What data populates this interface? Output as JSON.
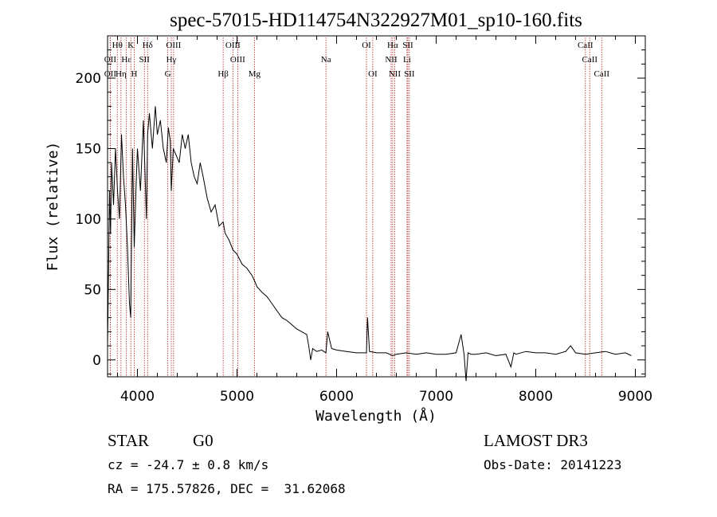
{
  "colors": {
    "foreground": "#000000",
    "line_marker": "#b22222",
    "background": "#ffffff"
  },
  "chart_data": {
    "type": "line",
    "title": "spec-57015-HD114754N322927M01_sp10-160.fits",
    "xlabel": "Wavelength (Å)",
    "ylabel": "Flux (relative)",
    "xlim": [
      3700,
      9100
    ],
    "ylim": [
      -12,
      230
    ],
    "x_ticks": [
      4000,
      5000,
      6000,
      7000,
      8000,
      9000
    ],
    "y_ticks": [
      0,
      50,
      100,
      150,
      200
    ],
    "grid": false,
    "series": [
      {
        "name": "spectrum",
        "x": [
          3700,
          3710,
          3720,
          3730,
          3740,
          3760,
          3780,
          3800,
          3820,
          3840,
          3860,
          3880,
          3900,
          3920,
          3933,
          3950,
          3968,
          3985,
          4000,
          4030,
          4060,
          4090,
          4102,
          4120,
          4150,
          4180,
          4200,
          4230,
          4260,
          4290,
          4310,
          4330,
          4340,
          4360,
          4390,
          4420,
          4450,
          4480,
          4510,
          4540,
          4570,
          4600,
          4630,
          4660,
          4700,
          4740,
          4780,
          4820,
          4861,
          4880,
          4920,
          4960,
          5000,
          5050,
          5100,
          5150,
          5183,
          5200,
          5250,
          5300,
          5350,
          5400,
          5450,
          5500,
          5550,
          5600,
          5650,
          5700,
          5720,
          5740,
          5760,
          5800,
          5850,
          5893,
          5910,
          5950,
          6000,
          6100,
          6200,
          6300,
          6310,
          6330,
          6400,
          6500,
          6563,
          6600,
          6700,
          6800,
          6900,
          7000,
          7100,
          7200,
          7250,
          7280,
          7300,
          7320,
          7350,
          7400,
          7500,
          7600,
          7700,
          7750,
          7780,
          7800,
          7900,
          8000,
          8100,
          8200,
          8300,
          8350,
          8400,
          8500,
          8600,
          8700,
          8800,
          8900,
          8960
        ],
        "y": [
          10,
          65,
          120,
          90,
          140,
          110,
          150,
          120,
          100,
          160,
          130,
          110,
          80,
          40,
          30,
          150,
          80,
          120,
          150,
          120,
          170,
          100,
          160,
          175,
          150,
          180,
          160,
          170,
          150,
          140,
          165,
          155,
          120,
          150,
          145,
          140,
          160,
          150,
          160,
          140,
          130,
          125,
          140,
          130,
          115,
          105,
          110,
          95,
          98,
          90,
          85,
          78,
          75,
          68,
          65,
          60,
          55,
          52,
          48,
          45,
          40,
          35,
          30,
          28,
          25,
          22,
          20,
          18,
          10,
          0,
          8,
          6,
          7,
          5,
          20,
          8,
          7,
          6,
          5,
          5,
          30,
          6,
          5,
          5,
          3,
          4,
          5,
          4,
          5,
          4,
          4,
          5,
          18,
          4,
          -15,
          5,
          4,
          4,
          5,
          3,
          4,
          -5,
          5,
          4,
          6,
          5,
          5,
          4,
          6,
          10,
          5,
          4,
          5,
          6,
          4,
          5,
          3
        ]
      }
    ],
    "line_markers": [
      {
        "label": "Hθ",
        "x": 3798,
        "row": 1
      },
      {
        "label": "K",
        "x": 3934,
        "row": 1
      },
      {
        "label": "Hδ",
        "x": 4102,
        "row": 1
      },
      {
        "label": "OIII",
        "x": 4363,
        "row": 1
      },
      {
        "label": "OIII",
        "x": 4959,
        "row": 1
      },
      {
        "label": "OI",
        "x": 6300,
        "row": 1
      },
      {
        "label": "Hα",
        "x": 6563,
        "row": 1
      },
      {
        "label": "SII",
        "x": 6716,
        "row": 1
      },
      {
        "label": "CaII",
        "x": 8498,
        "row": 1
      },
      {
        "label": "OII",
        "x": 3727,
        "row": 2
      },
      {
        "label": "Hε",
        "x": 3889,
        "row": 2
      },
      {
        "label": "SII",
        "x": 4070,
        "row": 2
      },
      {
        "label": "Hγ",
        "x": 4340,
        "row": 2
      },
      {
        "label": "OIII",
        "x": 5007,
        "row": 2
      },
      {
        "label": "Na",
        "x": 5893,
        "row": 2
      },
      {
        "label": "NII",
        "x": 6548,
        "row": 2
      },
      {
        "label": "Li",
        "x": 6707,
        "row": 2
      },
      {
        "label": "CaII",
        "x": 8542,
        "row": 2
      },
      {
        "label": "OII",
        "x": 3727,
        "row": 3
      },
      {
        "label": "Hη",
        "x": 3835,
        "row": 3
      },
      {
        "label": "H",
        "x": 3968,
        "row": 3
      },
      {
        "label": "G",
        "x": 4305,
        "row": 3
      },
      {
        "label": "Hβ",
        "x": 4861,
        "row": 3
      },
      {
        "label": "Mg",
        "x": 5175,
        "row": 3
      },
      {
        "label": "OI",
        "x": 6363,
        "row": 3
      },
      {
        "label": "NII",
        "x": 6583,
        "row": 3
      },
      {
        "label": "SII",
        "x": 6731,
        "row": 3
      },
      {
        "label": "CaII",
        "x": 8662,
        "row": 3
      }
    ]
  },
  "footer": {
    "object_class": "STAR",
    "subclass": "G0",
    "survey": "LAMOST DR3",
    "redshift": "cz = -24.7 ± 0.8 km/s",
    "obs_date": "Obs-Date: 20141223",
    "coords": "RA = 175.57826, DEC =  31.62068"
  }
}
